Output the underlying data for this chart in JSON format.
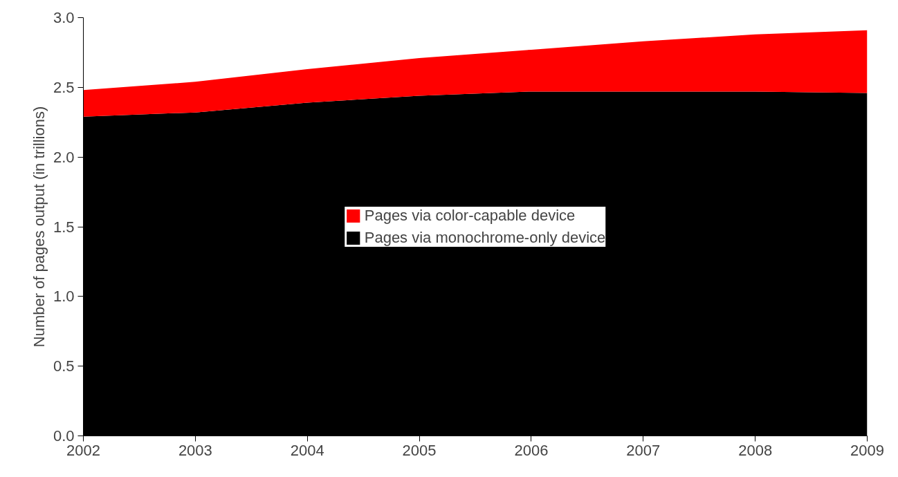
{
  "chart_data": {
    "type": "area",
    "stacked": true,
    "ylabel": "Number of pages output (in trillions)",
    "x": [
      2002,
      2003,
      2004,
      2005,
      2006,
      2007,
      2008,
      2009
    ],
    "xlim": [
      2002,
      2009
    ],
    "xticks": [
      2002,
      2003,
      2004,
      2005,
      2006,
      2007,
      2008,
      2009
    ],
    "ylim": [
      0,
      3
    ],
    "yticks": [
      {
        "value": 0,
        "label": "0.0"
      },
      {
        "value": 0.5,
        "label": "0.5"
      },
      {
        "value": 1,
        "label": "1.0"
      },
      {
        "value": 1.5,
        "label": "1.5"
      },
      {
        "value": 2,
        "label": "2.0"
      },
      {
        "value": 2.5,
        "label": "2.5"
      },
      {
        "value": 3,
        "label": "3.0"
      }
    ],
    "series": [
      {
        "name": "Pages via monochrome-only device",
        "color": "#000000",
        "values": [
          2.29,
          2.32,
          2.39,
          2.44,
          2.47,
          2.47,
          2.47,
          2.46
        ]
      },
      {
        "name": "Pages via color-capable device",
        "color": "#ff0000",
        "values": [
          0.19,
          0.22,
          0.24,
          0.27,
          0.3,
          0.36,
          0.41,
          0.45
        ]
      }
    ],
    "grid": false,
    "legend": "center"
  }
}
